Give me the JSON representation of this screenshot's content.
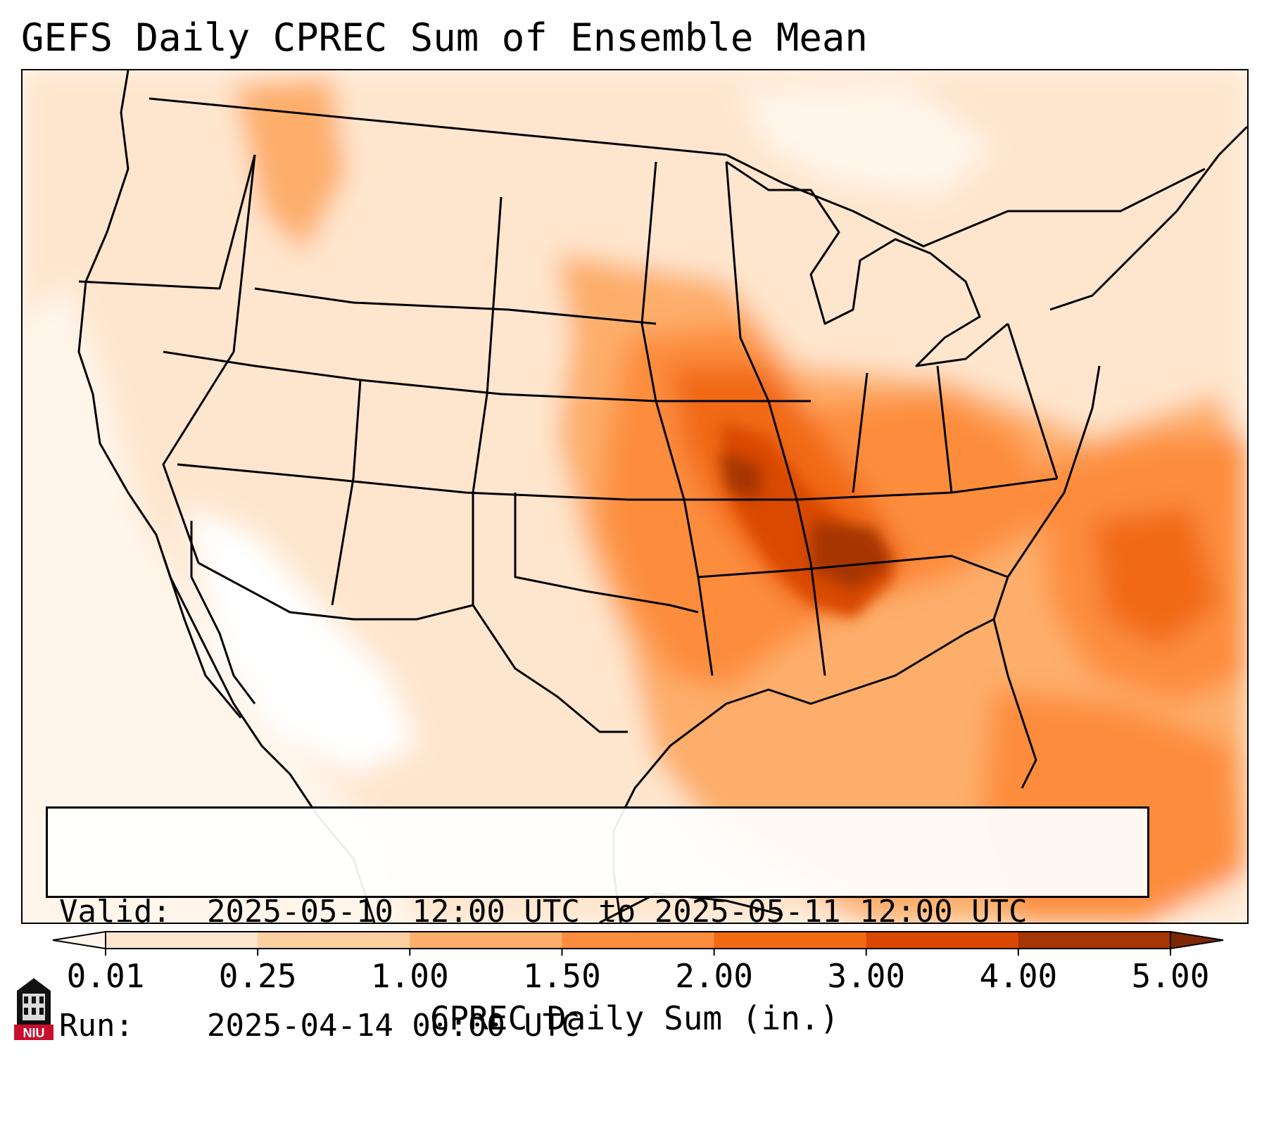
{
  "title": "GEFS Daily CPREC Sum of Ensemble Mean",
  "info": {
    "valid_label": "Valid:",
    "valid_value": "2025-05-10 12:00 UTC to 2025-05-11 12:00 UTC",
    "run_label": "Run:",
    "run_value": "2025-04-14 00:00 UTC"
  },
  "colorbar": {
    "label": "CPREC Daily Sum (in.)",
    "ticks": [
      "0.01",
      "0.25",
      "1.00",
      "1.50",
      "2.00",
      "3.00",
      "4.00",
      "5.00"
    ],
    "colors": [
      "#fff5eb",
      "#fee6ce",
      "#fdd0a2",
      "#fdae6b",
      "#fd8d3c",
      "#f16913",
      "#d94801",
      "#a63603",
      "#7f2704"
    ]
  },
  "logo": {
    "text": "NIU"
  }
}
